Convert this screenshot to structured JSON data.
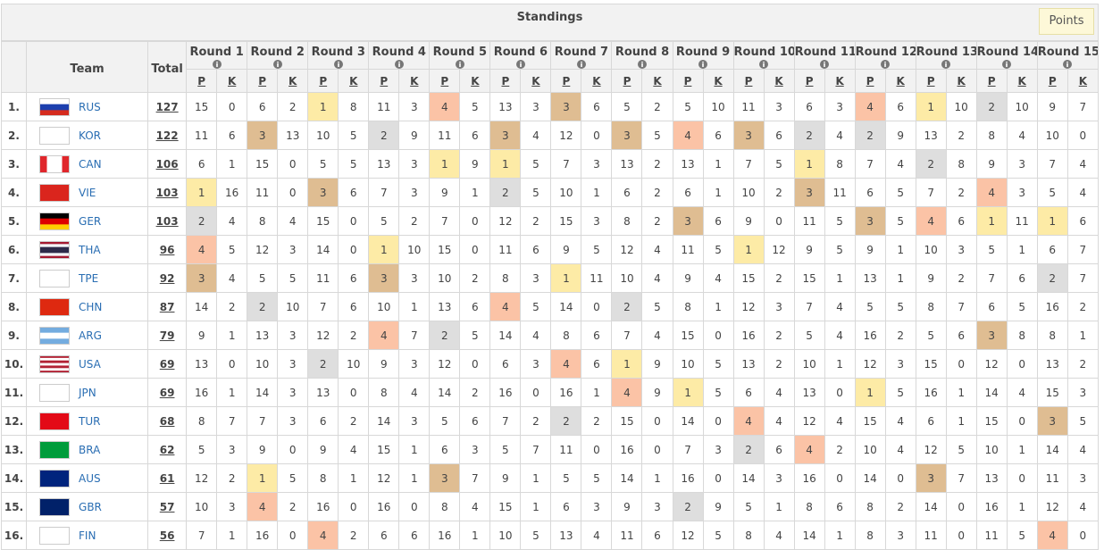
{
  "header": {
    "title": "Standings",
    "button": "Points"
  },
  "columns": {
    "team": "Team",
    "total": "Total",
    "rounds": [
      "Round 1",
      "Round 2",
      "Round 3",
      "Round 4",
      "Round 5",
      "Round 6",
      "Round 7",
      "Round 8",
      "Round 9",
      "Round 10",
      "Round 11",
      "Round 12",
      "Round 13",
      "Round 14",
      "Round 15"
    ],
    "sub": [
      "P",
      "K"
    ]
  },
  "rank_colors": {
    "1": "#fdeba6",
    "2": "#dedede",
    "3": "#dfbd92",
    "4": "#fbc3a6"
  },
  "rows": [
    {
      "rank": "1.",
      "team": "RUS",
      "total": 127,
      "flag": {
        "dir": "h",
        "stripes": [
          "#ffffff",
          "#1c3fae",
          "#d52b1e"
        ]
      },
      "rounds": [
        [
          15,
          0
        ],
        [
          6,
          2
        ],
        [
          1,
          8
        ],
        [
          11,
          3
        ],
        [
          4,
          5
        ],
        [
          13,
          3
        ],
        [
          3,
          6
        ],
        [
          5,
          2
        ],
        [
          5,
          10
        ],
        [
          11,
          3
        ],
        [
          6,
          3
        ],
        [
          4,
          6
        ],
        [
          1,
          10
        ],
        [
          2,
          10
        ],
        [
          9,
          7
        ]
      ]
    },
    {
      "rank": "2.",
      "team": "KOR",
      "total": 122,
      "flag": {
        "dir": "h",
        "stripes": [
          "#ffffff"
        ]
      },
      "rounds": [
        [
          11,
          6
        ],
        [
          3,
          13
        ],
        [
          10,
          5
        ],
        [
          2,
          9
        ],
        [
          11,
          6
        ],
        [
          3,
          4
        ],
        [
          12,
          0
        ],
        [
          3,
          5
        ],
        [
          4,
          6
        ],
        [
          3,
          6
        ],
        [
          2,
          4
        ],
        [
          2,
          9
        ],
        [
          13,
          2
        ],
        [
          8,
          4
        ],
        [
          10,
          0
        ]
      ]
    },
    {
      "rank": "3.",
      "team": "CAN",
      "total": 106,
      "flag": {
        "dir": "v",
        "stripes": [
          "#e0262b",
          "#ffffff",
          "#ffffff",
          "#e0262b"
        ]
      },
      "rounds": [
        [
          6,
          1
        ],
        [
          15,
          0
        ],
        [
          5,
          5
        ],
        [
          13,
          3
        ],
        [
          1,
          9
        ],
        [
          1,
          5
        ],
        [
          7,
          3
        ],
        [
          13,
          2
        ],
        [
          13,
          1
        ],
        [
          7,
          5
        ],
        [
          1,
          8
        ],
        [
          7,
          4
        ],
        [
          2,
          8
        ],
        [
          9,
          3
        ],
        [
          7,
          4
        ]
      ]
    },
    {
      "rank": "4.",
      "team": "VIE",
      "total": 103,
      "flag": {
        "dir": "h",
        "stripes": [
          "#da251d"
        ]
      },
      "rounds": [
        [
          1,
          16
        ],
        [
          11,
          0
        ],
        [
          3,
          6
        ],
        [
          7,
          3
        ],
        [
          9,
          1
        ],
        [
          2,
          5
        ],
        [
          10,
          1
        ],
        [
          6,
          2
        ],
        [
          6,
          1
        ],
        [
          10,
          2
        ],
        [
          3,
          11
        ],
        [
          6,
          5
        ],
        [
          7,
          2
        ],
        [
          4,
          3
        ],
        [
          5,
          4
        ]
      ]
    },
    {
      "rank": "5.",
      "team": "GER",
      "total": 103,
      "flag": {
        "dir": "h",
        "stripes": [
          "#000000",
          "#dd0000",
          "#ffce00"
        ]
      },
      "rounds": [
        [
          2,
          4
        ],
        [
          8,
          4
        ],
        [
          15,
          0
        ],
        [
          5,
          2
        ],
        [
          7,
          0
        ],
        [
          12,
          2
        ],
        [
          15,
          3
        ],
        [
          8,
          2
        ],
        [
          3,
          6
        ],
        [
          9,
          0
        ],
        [
          11,
          5
        ],
        [
          3,
          5
        ],
        [
          4,
          6
        ],
        [
          1,
          11
        ],
        [
          1,
          6
        ]
      ]
    },
    {
      "rank": "6.",
      "team": "THA",
      "total": 96,
      "flag": {
        "dir": "h",
        "stripes": [
          "#a51931",
          "#f4f5f8",
          "#2d2a4a",
          "#2d2a4a",
          "#f4f5f8",
          "#a51931"
        ]
      },
      "rounds": [
        [
          4,
          5
        ],
        [
          12,
          3
        ],
        [
          14,
          0
        ],
        [
          1,
          10
        ],
        [
          15,
          0
        ],
        [
          11,
          6
        ],
        [
          9,
          5
        ],
        [
          12,
          4
        ],
        [
          11,
          5
        ],
        [
          1,
          12
        ],
        [
          9,
          5
        ],
        [
          9,
          1
        ],
        [
          10,
          3
        ],
        [
          5,
          1
        ],
        [
          6,
          7
        ]
      ]
    },
    {
      "rank": "7.",
      "team": "TPE",
      "total": 92,
      "flag": {
        "dir": "h",
        "stripes": [
          "#ffffff"
        ]
      },
      "rounds": [
        [
          3,
          4
        ],
        [
          5,
          5
        ],
        [
          11,
          6
        ],
        [
          3,
          3
        ],
        [
          10,
          2
        ],
        [
          8,
          3
        ],
        [
          1,
          11
        ],
        [
          10,
          4
        ],
        [
          9,
          4
        ],
        [
          15,
          2
        ],
        [
          15,
          1
        ],
        [
          13,
          1
        ],
        [
          9,
          2
        ],
        [
          7,
          6
        ],
        [
          2,
          7
        ]
      ]
    },
    {
      "rank": "8.",
      "team": "CHN",
      "total": 87,
      "flag": {
        "dir": "h",
        "stripes": [
          "#de2910"
        ]
      },
      "rounds": [
        [
          14,
          2
        ],
        [
          2,
          10
        ],
        [
          7,
          6
        ],
        [
          10,
          1
        ],
        [
          13,
          6
        ],
        [
          4,
          5
        ],
        [
          14,
          0
        ],
        [
          2,
          5
        ],
        [
          8,
          1
        ],
        [
          12,
          3
        ],
        [
          7,
          4
        ],
        [
          5,
          5
        ],
        [
          8,
          7
        ],
        [
          6,
          5
        ],
        [
          16,
          2
        ]
      ]
    },
    {
      "rank": "9.",
      "team": "ARG",
      "total": 79,
      "flag": {
        "dir": "h",
        "stripes": [
          "#74acdf",
          "#ffffff",
          "#74acdf"
        ]
      },
      "rounds": [
        [
          9,
          1
        ],
        [
          13,
          3
        ],
        [
          12,
          2
        ],
        [
          4,
          7
        ],
        [
          2,
          5
        ],
        [
          14,
          4
        ],
        [
          8,
          6
        ],
        [
          7,
          4
        ],
        [
          15,
          0
        ],
        [
          16,
          2
        ],
        [
          5,
          4
        ],
        [
          16,
          2
        ],
        [
          5,
          6
        ],
        [
          3,
          8
        ],
        [
          8,
          1
        ]
      ]
    },
    {
      "rank": "10.",
      "team": "USA",
      "total": 69,
      "flag": {
        "dir": "h",
        "stripes": [
          "#b22234",
          "#ffffff",
          "#b22234",
          "#ffffff",
          "#b22234",
          "#ffffff",
          "#b22234"
        ]
      },
      "rounds": [
        [
          13,
          0
        ],
        [
          10,
          3
        ],
        [
          2,
          10
        ],
        [
          9,
          3
        ],
        [
          12,
          0
        ],
        [
          6,
          3
        ],
        [
          4,
          6
        ],
        [
          1,
          9
        ],
        [
          10,
          5
        ],
        [
          13,
          2
        ],
        [
          10,
          1
        ],
        [
          12,
          3
        ],
        [
          15,
          0
        ],
        [
          12,
          0
        ],
        [
          13,
          2
        ]
      ]
    },
    {
      "rank": "11.",
      "team": "JPN",
      "total": 69,
      "flag": {
        "dir": "h",
        "stripes": [
          "#ffffff"
        ]
      },
      "rounds": [
        [
          16,
          1
        ],
        [
          14,
          3
        ],
        [
          13,
          0
        ],
        [
          8,
          4
        ],
        [
          14,
          2
        ],
        [
          16,
          0
        ],
        [
          16,
          1
        ],
        [
          4,
          9
        ],
        [
          1,
          5
        ],
        [
          6,
          4
        ],
        [
          13,
          0
        ],
        [
          1,
          5
        ],
        [
          16,
          1
        ],
        [
          14,
          4
        ],
        [
          15,
          3
        ]
      ]
    },
    {
      "rank": "12.",
      "team": "TUR",
      "total": 68,
      "flag": {
        "dir": "h",
        "stripes": [
          "#e30a17"
        ]
      },
      "rounds": [
        [
          8,
          7
        ],
        [
          7,
          3
        ],
        [
          6,
          2
        ],
        [
          14,
          3
        ],
        [
          5,
          6
        ],
        [
          7,
          2
        ],
        [
          2,
          2
        ],
        [
          15,
          0
        ],
        [
          14,
          0
        ],
        [
          4,
          4
        ],
        [
          12,
          4
        ],
        [
          15,
          4
        ],
        [
          6,
          1
        ],
        [
          15,
          0
        ],
        [
          3,
          5
        ]
      ]
    },
    {
      "rank": "13.",
      "team": "BRA",
      "total": 62,
      "flag": {
        "dir": "h",
        "stripes": [
          "#009c3b"
        ]
      },
      "rounds": [
        [
          5,
          3
        ],
        [
          9,
          0
        ],
        [
          9,
          4
        ],
        [
          15,
          1
        ],
        [
          6,
          3
        ],
        [
          5,
          7
        ],
        [
          11,
          0
        ],
        [
          16,
          0
        ],
        [
          7,
          3
        ],
        [
          2,
          6
        ],
        [
          4,
          2
        ],
        [
          10,
          4
        ],
        [
          12,
          5
        ],
        [
          10,
          1
        ],
        [
          14,
          4
        ]
      ]
    },
    {
      "rank": "14.",
      "team": "AUS",
      "total": 61,
      "flag": {
        "dir": "h",
        "stripes": [
          "#00247d"
        ]
      },
      "rounds": [
        [
          12,
          2
        ],
        [
          1,
          5
        ],
        [
          8,
          1
        ],
        [
          12,
          1
        ],
        [
          3,
          7
        ],
        [
          9,
          1
        ],
        [
          5,
          5
        ],
        [
          14,
          1
        ],
        [
          16,
          0
        ],
        [
          14,
          3
        ],
        [
          16,
          0
        ],
        [
          14,
          0
        ],
        [
          3,
          7
        ],
        [
          13,
          0
        ],
        [
          11,
          3
        ]
      ]
    },
    {
      "rank": "15.",
      "team": "GBR",
      "total": 57,
      "flag": {
        "dir": "h",
        "stripes": [
          "#012169"
        ]
      },
      "rounds": [
        [
          10,
          3
        ],
        [
          4,
          2
        ],
        [
          16,
          0
        ],
        [
          16,
          0
        ],
        [
          8,
          4
        ],
        [
          15,
          1
        ],
        [
          6,
          3
        ],
        [
          9,
          3
        ],
        [
          2,
          9
        ],
        [
          5,
          1
        ],
        [
          8,
          6
        ],
        [
          8,
          2
        ],
        [
          14,
          0
        ],
        [
          16,
          1
        ],
        [
          12,
          4
        ]
      ]
    },
    {
      "rank": "16.",
      "team": "FIN",
      "total": 56,
      "flag": {
        "dir": "h",
        "stripes": [
          "#ffffff"
        ]
      },
      "rounds": [
        [
          7,
          1
        ],
        [
          16,
          0
        ],
        [
          4,
          2
        ],
        [
          6,
          6
        ],
        [
          16,
          1
        ],
        [
          10,
          5
        ],
        [
          13,
          4
        ],
        [
          11,
          6
        ],
        [
          12,
          5
        ],
        [
          8,
          4
        ],
        [
          14,
          1
        ],
        [
          8,
          3
        ],
        [
          11,
          0
        ],
        [
          11,
          5
        ],
        [
          4,
          0
        ]
      ]
    }
  ]
}
